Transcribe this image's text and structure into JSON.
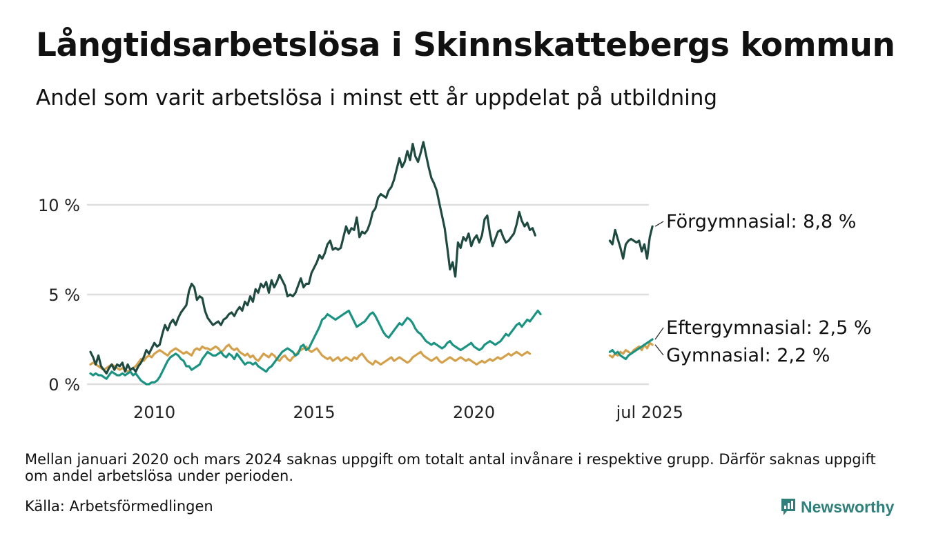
{
  "title": "Långtidsarbetslösa i Skinnskattebergs kommun",
  "subtitle": "Andel som varit arbetslösa i minst ett år uppdelat på utbildning",
  "footnote": "Mellan januari 2020 och mars 2024 saknas uppgift om totalt antal invånare i respektive grupp. Därför saknas uppgift om andel arbetslösa under perioden.",
  "source": "Källa: Arbetsförmedlingen",
  "brand": {
    "name": "Newsworthy",
    "color": "#2f7f7a"
  },
  "chart_data": {
    "type": "line",
    "title": "Långtidsarbetslösa i Skinnskattebergs kommun",
    "subtitle": "Andel som varit arbetslösa i minst ett år uppdelat på utbildning",
    "xlabel": "",
    "ylabel": "",
    "grid": true,
    "legend": "direct labels at line ends, right",
    "y_ticks": [
      {
        "value": 0,
        "label": "0 %"
      },
      {
        "value": 5,
        "label": "5 %"
      },
      {
        "value": 10,
        "label": "10 %"
      }
    ],
    "ylim": [
      0,
      14
    ],
    "x_ticks": [
      {
        "value": "2010-01",
        "label": "2010"
      },
      {
        "value": "2015-01",
        "label": "2015"
      },
      {
        "value": "2020-01",
        "label": "2020"
      },
      {
        "value": "2025-07",
        "label": "jul 2025"
      }
    ],
    "series": [
      {
        "name": "Förgymnasial",
        "end_label": "Förgymnasial: 8,8 %",
        "color": "#1f4a40",
        "segments": [
          {
            "start": "2008-01",
            "values": [
              1.8,
              1.5,
              1.1,
              1.6,
              1.0,
              0.8,
              0.6,
              0.9,
              1.1,
              0.8,
              1.1,
              1.0,
              1.2,
              0.7,
              1.1,
              0.8,
              0.9,
              0.7,
              1.0,
              1.2,
              1.5,
              1.9,
              1.7,
              2.0,
              2.3,
              2.1,
              2.2,
              2.8,
              3.3,
              3.0,
              3.4,
              3.6,
              3.3,
              3.7,
              4.0,
              4.2,
              4.4,
              5.2,
              5.6,
              5.4,
              4.7,
              4.9,
              4.8,
              4.1,
              3.7,
              3.5,
              3.3,
              3.4,
              3.5,
              3.3,
              3.6,
              3.7,
              3.9,
              4.0,
              3.8,
              4.1,
              4.3,
              4.1,
              4.6,
              4.4,
              4.9,
              4.6,
              5.3,
              5.1,
              5.6,
              5.4,
              5.7,
              5.1,
              5.8,
              5.4,
              5.7,
              6.1,
              5.8,
              5.5,
              4.9,
              5.0,
              4.9,
              5.1,
              5.5,
              5.9,
              5.4,
              5.6,
              5.6,
              6.2,
              6.5,
              6.8,
              7.2,
              7.0,
              7.3,
              7.8,
              8.0,
              7.5,
              7.6,
              7.5,
              7.6,
              8.2,
              8.8,
              8.4,
              8.7,
              8.6,
              9.3,
              8.2,
              8.5,
              8.4,
              8.6,
              9.0,
              9.6,
              9.8,
              10.4,
              10.6,
              10.5,
              10.4,
              10.8,
              11.0,
              11.4,
              12.0,
              12.6,
              12.1,
              12.4,
              13.0,
              12.5,
              13.4,
              12.7,
              12.4,
              12.9,
              13.5,
              12.8,
              12.1,
              11.5,
              11.2,
              10.8,
              10.1,
              9.4,
              8.7,
              7.6,
              6.4,
              6.8,
              6.0,
              7.9,
              7.6,
              8.2,
              8.0,
              8.4,
              7.7,
              8.1,
              8.3,
              7.9,
              8.3,
              9.2,
              9.4,
              8.4,
              7.7,
              8.1,
              8.5,
              8.6,
              8.2,
              7.9,
              8.0,
              8.2,
              8.4,
              8.9,
              9.6,
              9.1,
              8.8,
              9.0,
              8.6,
              8.7,
              8.3
            ]
          },
          {
            "start": "2024-04",
            "values": [
              8.0,
              7.8,
              8.6,
              8.1,
              7.6,
              7.0,
              7.8,
              8.0,
              8.1,
              8.0,
              7.9,
              8.0,
              7.4,
              7.8,
              7.0,
              8.2,
              8.8
            ]
          }
        ]
      },
      {
        "name": "Eftergymnasial",
        "end_label": "Eftergymnasial: 2,5 %",
        "color": "#1a9382",
        "segments": [
          {
            "start": "2008-01",
            "values": [
              0.6,
              0.5,
              0.6,
              0.5,
              0.5,
              0.4,
              0.3,
              0.5,
              0.7,
              0.6,
              0.5,
              0.5,
              0.6,
              0.5,
              0.6,
              0.7,
              0.5,
              0.6,
              0.4,
              0.2,
              0.1,
              0.0,
              0.0,
              0.1,
              0.1,
              0.2,
              0.4,
              0.7,
              1.0,
              1.3,
              1.5,
              1.6,
              1.7,
              1.6,
              1.4,
              1.3,
              1.0,
              1.0,
              0.8,
              0.9,
              1.0,
              1.1,
              1.4,
              1.6,
              1.8,
              1.7,
              1.6,
              1.6,
              1.7,
              1.8,
              1.6,
              1.5,
              1.7,
              1.6,
              1.4,
              1.7,
              1.5,
              1.3,
              1.1,
              1.2,
              1.2,
              1.1,
              1.2,
              1.0,
              0.9,
              0.8,
              0.7,
              0.9,
              1.0,
              1.2,
              1.4,
              1.6,
              1.8,
              1.9,
              2.0,
              1.9,
              1.8,
              1.6,
              1.7,
              2.1,
              2.2,
              1.9,
              2.0,
              2.3,
              2.6,
              2.9,
              3.2,
              3.6,
              3.7,
              3.9,
              3.8,
              3.7,
              3.6,
              3.7,
              3.8,
              3.9,
              4.0,
              4.1,
              3.8,
              3.5,
              3.2,
              3.3,
              3.4,
              3.5,
              3.7,
              3.9,
              4.0,
              3.8,
              3.5,
              3.2,
              2.9,
              2.7,
              2.6,
              2.8,
              3.0,
              3.2,
              3.4,
              3.3,
              3.5,
              3.7,
              3.6,
              3.4,
              3.1,
              2.9,
              2.8,
              2.6,
              2.4,
              2.3,
              2.2,
              2.3,
              2.2,
              2.1,
              2.0,
              2.1,
              2.3,
              2.4,
              2.2,
              2.1,
              2.0,
              1.9,
              2.0,
              2.1,
              2.2,
              2.3,
              2.1,
              2.0,
              1.9,
              2.0,
              2.2,
              2.3,
              2.4,
              2.3,
              2.2,
              2.3,
              2.4,
              2.6,
              2.8,
              2.7,
              2.9,
              3.1,
              3.3,
              3.4,
              3.2,
              3.4,
              3.6,
              3.5,
              3.7,
              3.9,
              4.1,
              3.9
            ]
          },
          {
            "start": "2024-04",
            "values": [
              1.8,
              1.9,
              1.7,
              1.8,
              1.6,
              1.5,
              1.4,
              1.6,
              1.7,
              1.8,
              1.9,
              2.0,
              2.1,
              2.2,
              2.3,
              2.4,
              2.5
            ]
          }
        ]
      },
      {
        "name": "Gymnasial",
        "end_label": "Gymnasial: 2,2 %",
        "color": "#d4a04a",
        "segments": [
          {
            "start": "2008-01",
            "values": [
              1.1,
              1.2,
              1.1,
              1.0,
              0.9,
              0.8,
              0.9,
              1.0,
              1.1,
              1.0,
              0.9,
              0.8,
              0.9,
              0.8,
              0.7,
              0.8,
              0.9,
              1.0,
              1.2,
              1.4,
              1.3,
              1.5,
              1.6,
              1.5,
              1.7,
              1.8,
              1.9,
              1.8,
              1.7,
              1.6,
              1.8,
              1.9,
              2.0,
              1.9,
              1.8,
              1.7,
              1.8,
              1.7,
              1.6,
              1.9,
              2.0,
              1.9,
              2.1,
              2.0,
              2.0,
              1.9,
              2.0,
              2.1,
              2.0,
              1.8,
              1.9,
              2.1,
              2.2,
              2.0,
              1.9,
              2.0,
              1.8,
              1.7,
              1.6,
              1.7,
              1.5,
              1.6,
              1.4,
              1.3,
              1.5,
              1.7,
              1.6,
              1.5,
              1.7,
              1.6,
              1.4,
              1.3,
              1.5,
              1.6,
              1.4,
              1.3,
              1.5,
              1.6,
              1.8,
              1.9,
              2.0,
              2.1,
              1.9,
              1.8,
              1.9,
              2.0,
              1.8,
              1.6,
              1.5,
              1.4,
              1.5,
              1.3,
              1.4,
              1.5,
              1.3,
              1.4,
              1.5,
              1.4,
              1.3,
              1.5,
              1.4,
              1.6,
              1.7,
              1.5,
              1.3,
              1.2,
              1.1,
              1.3,
              1.2,
              1.1,
              1.2,
              1.3,
              1.4,
              1.5,
              1.3,
              1.4,
              1.5,
              1.4,
              1.3,
              1.2,
              1.3,
              1.5,
              1.6,
              1.7,
              1.8,
              1.6,
              1.5,
              1.4,
              1.3,
              1.4,
              1.5,
              1.3,
              1.2,
              1.3,
              1.4,
              1.5,
              1.4,
              1.3,
              1.4,
              1.5,
              1.4,
              1.3,
              1.4,
              1.3,
              1.2,
              1.1,
              1.2,
              1.3,
              1.2,
              1.3,
              1.4,
              1.3,
              1.4,
              1.5,
              1.4,
              1.5,
              1.6,
              1.7,
              1.6,
              1.7,
              1.8,
              1.7,
              1.6,
              1.7,
              1.8,
              1.7
            ]
          },
          {
            "start": "2024-04",
            "values": [
              1.6,
              1.5,
              1.7,
              1.6,
              1.8,
              1.7,
              1.9,
              1.8,
              1.7,
              1.9,
              2.0,
              2.1,
              1.9,
              2.2,
              2.0,
              2.3,
              2.2
            ]
          }
        ]
      }
    ]
  }
}
